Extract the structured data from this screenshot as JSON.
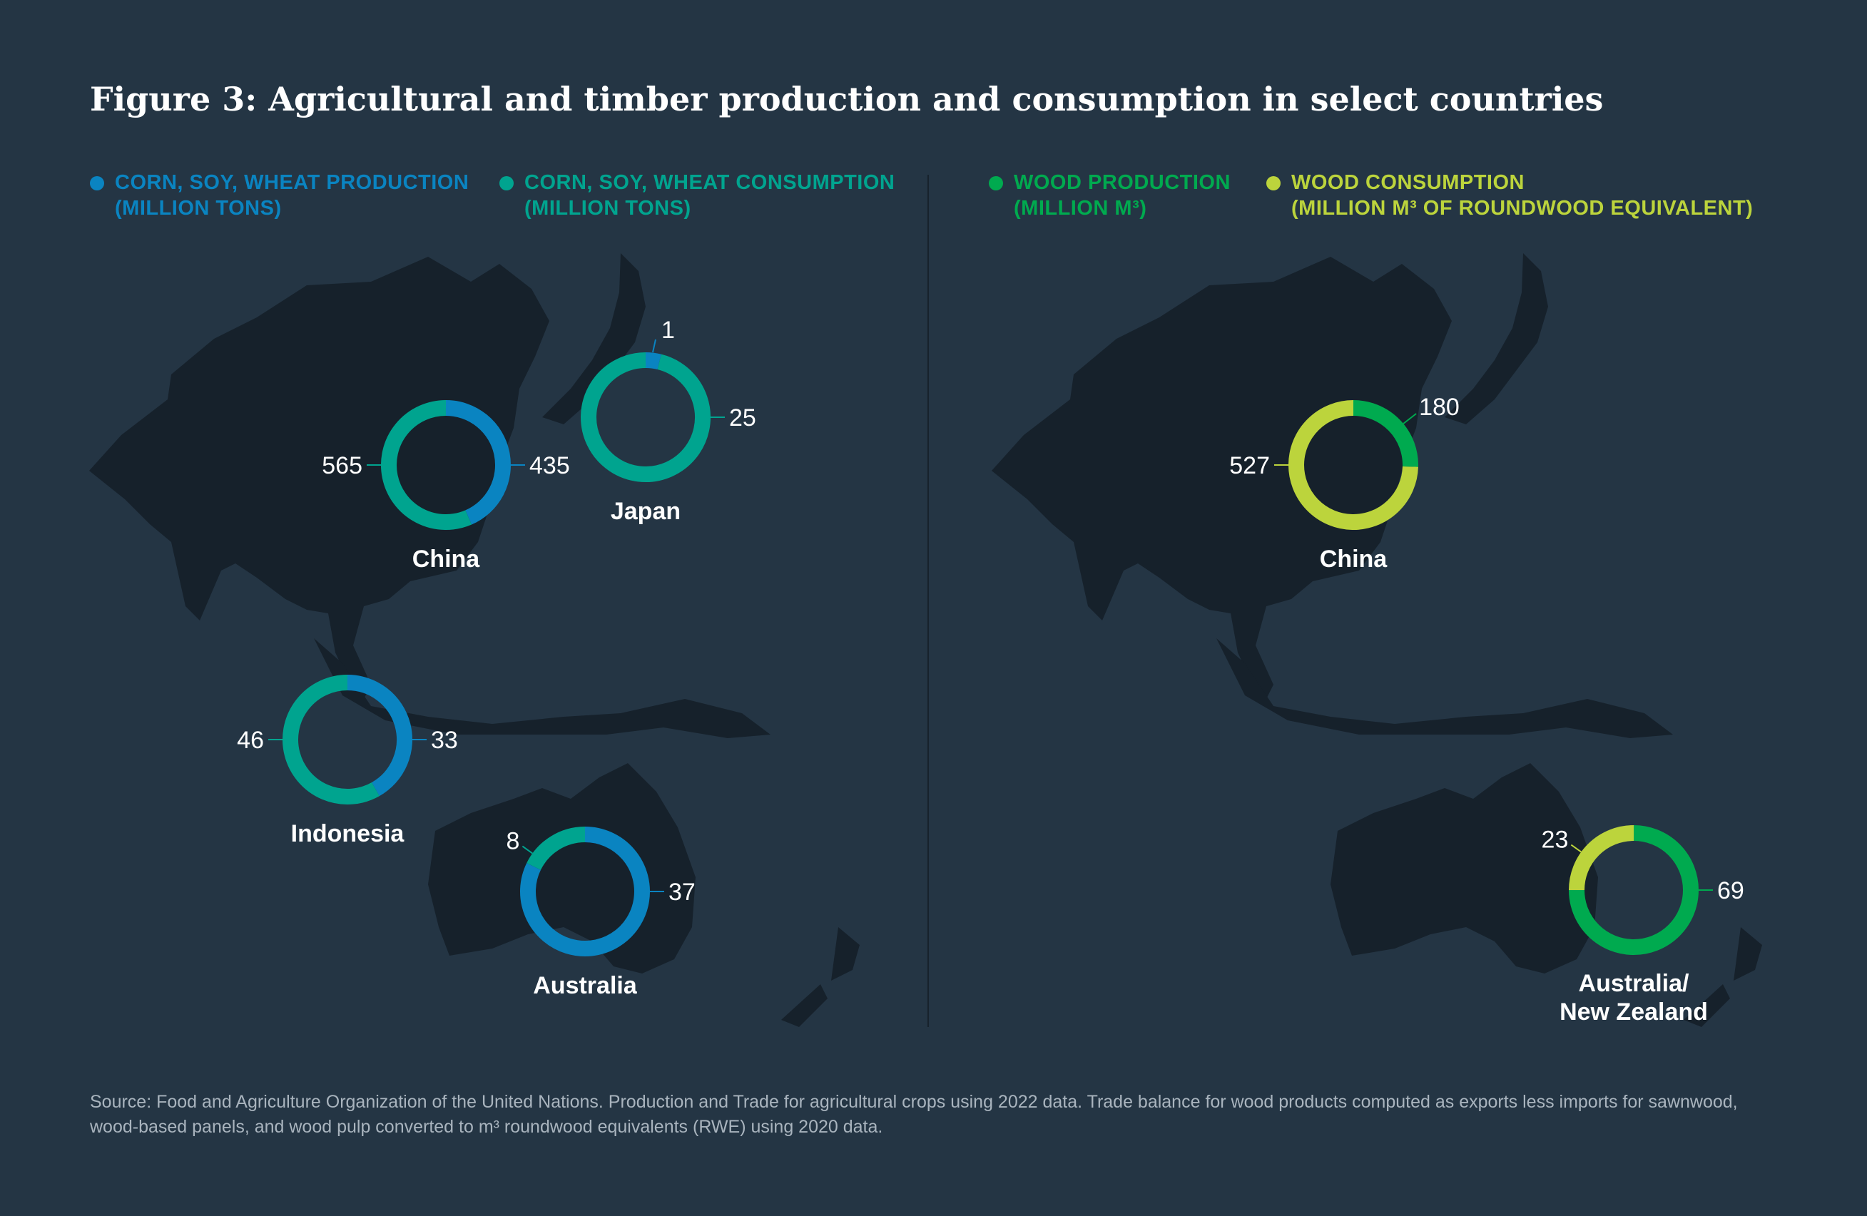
{
  "title": "Figure 3: Agricultural and timber production and consumption in select countries",
  "legend": {
    "agri_production": {
      "line1": "CORN, SOY, WHEAT PRODUCTION",
      "line2": "(MILLION TONS)",
      "color": "#0a84c1"
    },
    "agri_consumption": {
      "line1": "CORN, SOY, WHEAT CONSUMPTION",
      "line2": "(MILLION TONS)",
      "color": "#00a48f"
    },
    "wood_production": {
      "line1": "WOOD PRODUCTION",
      "line2": "(MILLION M³)",
      "color": "#00aa4f"
    },
    "wood_consumption": {
      "line1": "WOOD CONSUMPTION",
      "line2": "(MILLION M³ OF ROUNDWOOD EQUIVALENT)",
      "color": "#bcd43c"
    }
  },
  "source": "Source: Food and Agriculture Organization of the United Nations. Production and Trade for agricultural crops using 2022 data.  Trade balance for wood products computed as exports less imports for sawnwood, wood-based panels, and wood pulp converted to m³ roundwood equivalents (RWE) using 2020 data.",
  "chart_data": [
    {
      "type": "donut",
      "panel": "Corn, soy, wheat",
      "series_names": [
        "CORN, SOY, WHEAT PRODUCTION (MILLION TONS)",
        "CORN, SOY, WHEAT CONSUMPTION (MILLION TONS)"
      ],
      "colors": {
        "production": "#0a84c1",
        "consumption": "#00a48f"
      },
      "donuts": [
        {
          "country": "China",
          "production": 435,
          "consumption": 565
        },
        {
          "country": "Japan",
          "production": 1,
          "consumption": 25
        },
        {
          "country": "Indonesia",
          "production": 33,
          "consumption": 46
        },
        {
          "country": "Australia",
          "production": 37,
          "consumption": 8
        }
      ]
    },
    {
      "type": "donut",
      "panel": "Wood",
      "series_names": [
        "WOOD PRODUCTION (MILLION M³)",
        "WOOD CONSUMPTION (MILLION M³ OF ROUNDWOOD EQUIVALENT)"
      ],
      "colors": {
        "production": "#00aa4f",
        "consumption": "#bcd43c"
      },
      "donuts": [
        {
          "country": "China",
          "production": 180,
          "consumption": 527
        },
        {
          "country": "Australia/ New Zealand",
          "country_lines": [
            "Australia/",
            "New Zealand"
          ],
          "production": 69,
          "consumption": 23
        }
      ]
    }
  ]
}
